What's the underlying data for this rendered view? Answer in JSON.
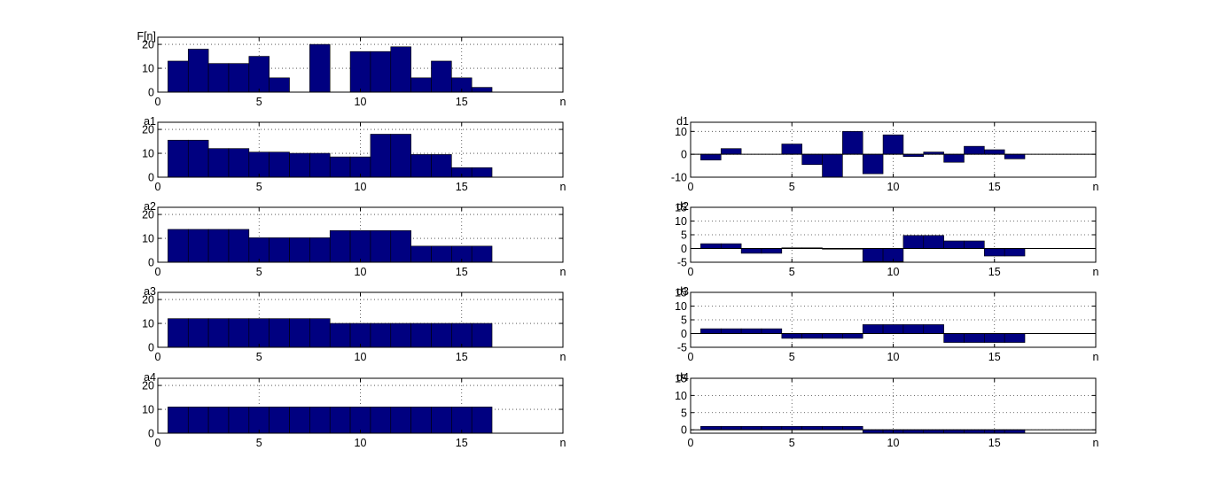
{
  "colors": {
    "bar_fill": "#000080",
    "axes": "#000000",
    "background": "#ffffff"
  },
  "chart_data": [
    {
      "id": "Fn",
      "type": "bar",
      "title": "F[n]",
      "xlabel": "n",
      "xlim": [
        0,
        20
      ],
      "ylim": [
        0,
        23
      ],
      "xticks": [
        0,
        5,
        10,
        15
      ],
      "yticks": [
        0,
        10,
        20
      ],
      "x": [
        1,
        2,
        3,
        4,
        5,
        6,
        7,
        8,
        9,
        10,
        11,
        12,
        13,
        14,
        15,
        16
      ],
      "values": [
        13,
        18,
        12,
        12,
        15,
        6,
        0,
        20,
        0,
        17,
        17,
        19,
        6,
        13,
        6,
        2
      ]
    },
    {
      "id": "a1",
      "type": "bar",
      "title": "a1",
      "xlabel": "n",
      "xlim": [
        0,
        20
      ],
      "ylim": [
        0,
        23
      ],
      "xticks": [
        0,
        5,
        10,
        15
      ],
      "yticks": [
        0,
        10,
        20
      ],
      "x": [
        1,
        2,
        3,
        4,
        5,
        6,
        7,
        8,
        9,
        10,
        11,
        12,
        13,
        14,
        15,
        16
      ],
      "values": [
        15.5,
        15.5,
        12,
        12,
        10.5,
        10.5,
        10,
        10,
        8.5,
        8.5,
        18,
        18,
        9.5,
        9.5,
        4,
        4
      ]
    },
    {
      "id": "d1",
      "type": "bar",
      "title": "d1",
      "xlabel": "n",
      "xlim": [
        0,
        20
      ],
      "ylim": [
        -10,
        14
      ],
      "xticks": [
        0,
        5,
        10,
        15
      ],
      "yticks": [
        -10,
        0,
        10
      ],
      "x": [
        1,
        2,
        3,
        4,
        5,
        6,
        7,
        8,
        9,
        10,
        11,
        12,
        13,
        14,
        15,
        16
      ],
      "values": [
        -2.5,
        2.5,
        0,
        0,
        4.5,
        -4.5,
        -10,
        10,
        -8.5,
        8.5,
        -1,
        1,
        -3.5,
        3.5,
        2,
        -2
      ]
    },
    {
      "id": "a2",
      "type": "bar",
      "title": "a2",
      "xlabel": "n",
      "xlim": [
        0,
        20
      ],
      "ylim": [
        0,
        23
      ],
      "xticks": [
        0,
        5,
        10,
        15
      ],
      "yticks": [
        0,
        10,
        20
      ],
      "x": [
        1,
        2,
        3,
        4,
        5,
        6,
        7,
        8,
        9,
        10,
        11,
        12,
        13,
        14,
        15,
        16
      ],
      "values": [
        13.75,
        13.75,
        13.75,
        13.75,
        10.25,
        10.25,
        10.25,
        10.25,
        13.25,
        13.25,
        13.25,
        13.25,
        6.75,
        6.75,
        6.75,
        6.75
      ]
    },
    {
      "id": "d2",
      "type": "bar",
      "title": "d2",
      "xlabel": "n",
      "xlim": [
        0,
        20
      ],
      "ylim": [
        -5,
        15
      ],
      "xticks": [
        0,
        5,
        10,
        15
      ],
      "yticks": [
        -5,
        0,
        5,
        10,
        15
      ],
      "x": [
        1,
        2,
        3,
        4,
        5,
        6,
        7,
        8,
        9,
        10,
        11,
        12,
        13,
        14,
        15,
        16
      ],
      "values": [
        1.75,
        1.75,
        -1.75,
        -1.75,
        0.25,
        0.25,
        -0.25,
        -0.25,
        -4.75,
        -4.75,
        4.75,
        4.75,
        2.75,
        2.75,
        -2.75,
        -2.75
      ]
    },
    {
      "id": "a3",
      "type": "bar",
      "title": "a3",
      "xlabel": "n",
      "xlim": [
        0,
        20
      ],
      "ylim": [
        0,
        23
      ],
      "xticks": [
        0,
        5,
        10,
        15
      ],
      "yticks": [
        0,
        10,
        20
      ],
      "x": [
        1,
        2,
        3,
        4,
        5,
        6,
        7,
        8,
        9,
        10,
        11,
        12,
        13,
        14,
        15,
        16
      ],
      "values": [
        12,
        12,
        12,
        12,
        12,
        12,
        12,
        12,
        10,
        10,
        10,
        10,
        10,
        10,
        10,
        10
      ]
    },
    {
      "id": "d3",
      "type": "bar",
      "title": "d3",
      "xlabel": "n",
      "xlim": [
        0,
        20
      ],
      "ylim": [
        -5,
        15
      ],
      "xticks": [
        0,
        5,
        10,
        15
      ],
      "yticks": [
        -5,
        0,
        5,
        10,
        15
      ],
      "x": [
        1,
        2,
        3,
        4,
        5,
        6,
        7,
        8,
        9,
        10,
        11,
        12,
        13,
        14,
        15,
        16
      ],
      "values": [
        1.75,
        1.75,
        1.75,
        1.75,
        -1.75,
        -1.75,
        -1.75,
        -1.75,
        3.25,
        3.25,
        3.25,
        3.25,
        -3.25,
        -3.25,
        -3.25,
        -3.25
      ]
    },
    {
      "id": "a4",
      "type": "bar",
      "title": "a4",
      "xlabel": "n",
      "xlim": [
        0,
        20
      ],
      "ylim": [
        0,
        23
      ],
      "xticks": [
        0,
        5,
        10,
        15
      ],
      "yticks": [
        0,
        10,
        20
      ],
      "x": [
        1,
        2,
        3,
        4,
        5,
        6,
        7,
        8,
        9,
        10,
        11,
        12,
        13,
        14,
        15,
        16
      ],
      "values": [
        11,
        11,
        11,
        11,
        11,
        11,
        11,
        11,
        11,
        11,
        11,
        11,
        11,
        11,
        11,
        11
      ]
    },
    {
      "id": "d4",
      "type": "bar",
      "title": "d4",
      "xlabel": "n",
      "xlim": [
        0,
        20
      ],
      "ylim": [
        -1,
        15
      ],
      "xticks": [
        0,
        5,
        10,
        15
      ],
      "yticks": [
        0,
        5,
        10,
        15
      ],
      "x": [
        1,
        2,
        3,
        4,
        5,
        6,
        7,
        8,
        9,
        10,
        11,
        12,
        13,
        14,
        15,
        16
      ],
      "values": [
        1,
        1,
        1,
        1,
        1,
        1,
        1,
        1,
        -1,
        -1,
        -1,
        -1,
        -1,
        -1,
        -1,
        -1
      ]
    }
  ]
}
